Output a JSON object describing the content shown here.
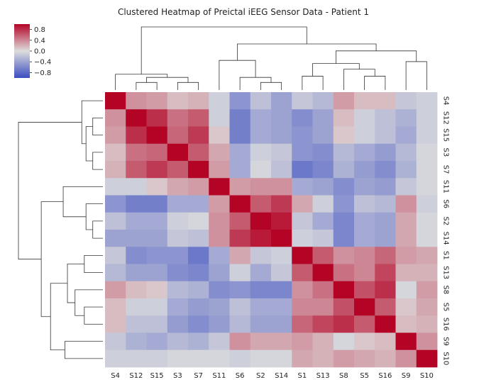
{
  "chart_data": {
    "type": "heatmap",
    "title": "Clustered Heatmap of Preictal iEEG Sensor Data - Patient 1",
    "labels": [
      "S4",
      "S12",
      "S15",
      "S3",
      "S7",
      "S11",
      "S6",
      "S2",
      "S14",
      "S1",
      "S13",
      "S8",
      "S5",
      "S16",
      "S9",
      "S10"
    ],
    "x": [
      "S4",
      "S12",
      "S15",
      "S3",
      "S7",
      "S11",
      "S6",
      "S2",
      "S14",
      "S1",
      "S13",
      "S8",
      "S5",
      "S16",
      "S9",
      "S10"
    ],
    "y": [
      "S4",
      "S12",
      "S15",
      "S3",
      "S7",
      "S11",
      "S6",
      "S2",
      "S14",
      "S1",
      "S13",
      "S8",
      "S5",
      "S16",
      "S9",
      "S10"
    ],
    "values": [
      [
        1.0,
        0.35,
        0.3,
        0.15,
        0.2,
        -0.1,
        -0.5,
        -0.2,
        -0.4,
        -0.15,
        -0.25,
        0.3,
        0.15,
        0.15,
        -0.15,
        -0.1
      ],
      [
        0.35,
        1.0,
        0.8,
        0.5,
        0.6,
        -0.1,
        -0.65,
        -0.35,
        -0.4,
        -0.55,
        -0.4,
        0.15,
        -0.1,
        -0.2,
        -0.3,
        -0.1
      ],
      [
        0.3,
        0.8,
        1.0,
        0.55,
        0.75,
        0.1,
        -0.65,
        -0.35,
        -0.4,
        -0.5,
        -0.4,
        0.1,
        -0.1,
        -0.2,
        -0.35,
        -0.1
      ],
      [
        0.15,
        0.5,
        0.55,
        1.0,
        0.6,
        0.25,
        -0.35,
        -0.1,
        -0.15,
        -0.5,
        -0.55,
        -0.25,
        -0.35,
        -0.45,
        -0.25,
        -0.05
      ],
      [
        0.2,
        0.6,
        0.75,
        0.6,
        1.0,
        0.3,
        -0.35,
        -0.05,
        -0.2,
        -0.7,
        -0.6,
        -0.3,
        -0.45,
        -0.55,
        -0.3,
        -0.05
      ],
      [
        -0.1,
        -0.1,
        0.1,
        0.25,
        0.3,
        1.0,
        0.3,
        0.35,
        0.35,
        -0.35,
        -0.4,
        -0.55,
        -0.4,
        -0.45,
        -0.15,
        -0.05
      ],
      [
        -0.5,
        -0.65,
        -0.65,
        -0.35,
        -0.35,
        0.3,
        1.0,
        0.6,
        0.75,
        0.25,
        -0.1,
        -0.5,
        -0.2,
        -0.25,
        0.35,
        -0.1
      ],
      [
        -0.2,
        -0.35,
        -0.35,
        -0.1,
        -0.05,
        0.35,
        0.6,
        1.0,
        0.9,
        -0.15,
        -0.35,
        -0.6,
        -0.35,
        -0.4,
        0.25,
        -0.05
      ],
      [
        -0.4,
        -0.4,
        -0.4,
        -0.15,
        -0.2,
        0.35,
        0.75,
        0.9,
        1.0,
        -0.1,
        -0.15,
        -0.6,
        -0.35,
        -0.4,
        0.25,
        -0.05
      ],
      [
        -0.15,
        -0.55,
        -0.5,
        -0.5,
        -0.7,
        -0.35,
        0.25,
        -0.15,
        -0.1,
        1.0,
        0.6,
        0.35,
        0.4,
        0.55,
        0.3,
        0.25
      ],
      [
        -0.25,
        -0.4,
        -0.4,
        -0.55,
        -0.6,
        -0.4,
        -0.1,
        -0.35,
        -0.15,
        0.6,
        1.0,
        0.5,
        0.4,
        0.7,
        0.2,
        0.2
      ],
      [
        0.3,
        0.15,
        0.1,
        -0.25,
        -0.3,
        -0.55,
        -0.5,
        -0.6,
        -0.6,
        0.35,
        0.5,
        1.0,
        0.65,
        0.8,
        -0.05,
        0.3
      ],
      [
        0.15,
        -0.1,
        -0.1,
        -0.35,
        -0.45,
        -0.4,
        -0.2,
        -0.35,
        -0.35,
        0.4,
        0.4,
        0.65,
        1.0,
        0.6,
        0.1,
        0.25
      ],
      [
        0.15,
        -0.2,
        -0.2,
        -0.45,
        -0.55,
        -0.45,
        -0.25,
        -0.4,
        -0.4,
        0.55,
        0.7,
        0.8,
        0.6,
        1.0,
        0.15,
        0.2
      ],
      [
        -0.15,
        -0.3,
        -0.35,
        -0.25,
        -0.3,
        -0.15,
        0.35,
        0.25,
        0.25,
        0.3,
        0.2,
        -0.05,
        0.1,
        0.15,
        1.0,
        0.35
      ],
      [
        -0.1,
        -0.1,
        -0.1,
        -0.05,
        -0.05,
        -0.05,
        -0.1,
        -0.05,
        -0.05,
        0.25,
        0.2,
        0.3,
        0.25,
        0.2,
        0.35,
        1.0
      ]
    ],
    "colorbar": {
      "ticks": [
        "0.8",
        "0.4",
        "0.0",
        "−0.4",
        "−0.8"
      ],
      "tick_values": [
        0.8,
        0.4,
        0.0,
        -0.4,
        -0.8
      ],
      "vmin": -1.0,
      "vmax": 1.0,
      "colormap": "coolwarm",
      "color_low": "#3b4cc0",
      "color_mid": "#dddddd",
      "color_high": "#b40426"
    },
    "row_dendrogram": {
      "merges": [
        [
          "S12",
          "S15"
        ],
        [
          "S3",
          "S7"
        ],
        [
          "S12+S15",
          "S3+S7"
        ],
        [
          "S4",
          "S12+S15+S3+S7"
        ],
        [
          "S2",
          "S14"
        ],
        [
          "S6",
          "S2+S14"
        ],
        [
          "S11",
          "S6+S2+S14"
        ],
        [
          "S1",
          "S13"
        ],
        [
          "S5",
          "S16"
        ],
        [
          "S8",
          "S5+S16"
        ],
        [
          "S1+S13",
          "S8+S5+S16"
        ],
        [
          "S9",
          "S10"
        ],
        [
          "S1+S13+S8+S5+S16",
          "S9+S10"
        ],
        [
          "S11+S6+S2+S14",
          "S1+S13+S8+S5+S16+S9+S10"
        ],
        [
          "S4+S12+S15+S3+S7",
          "S11+S6+S2+S14+S1+S13+S8+S5+S16+S9+S10"
        ]
      ]
    },
    "col_dendrogram": {
      "merges": [
        [
          "S12",
          "S15"
        ],
        [
          "S3",
          "S7"
        ],
        [
          "S12+S15",
          "S3+S7"
        ],
        [
          "S4",
          "S12+S15+S3+S7"
        ],
        [
          "S2",
          "S14"
        ],
        [
          "S6",
          "S2+S14"
        ],
        [
          "S11",
          "S6+S2+S14"
        ],
        [
          "S1",
          "S13"
        ],
        [
          "S5",
          "S16"
        ],
        [
          "S8",
          "S5+S16"
        ],
        [
          "S1+S13",
          "S8+S5+S16"
        ],
        [
          "S9",
          "S10"
        ],
        [
          "S1+S13+S8+S5+S16",
          "S9+S10"
        ],
        [
          "S11+S6+S2+S14",
          "S1+S13+S8+S5+S16+S9+S10"
        ],
        [
          "S4+S12+S15+S3+S7",
          "S11+S6+S2+S14+S1+S13+S8+S5+S16+S9+S10"
        ]
      ]
    }
  }
}
